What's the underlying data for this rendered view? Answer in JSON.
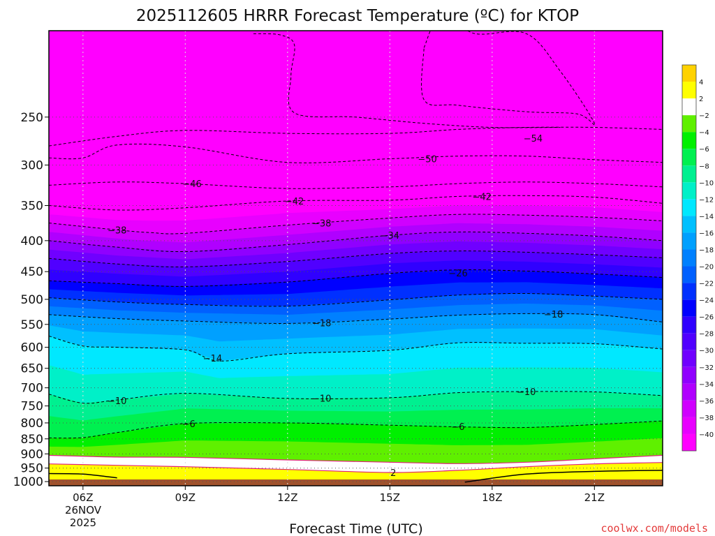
{
  "chart_data": {
    "type": "contour-filled time-height cross section",
    "title": "2025112605 HRRR Forecast Temperature (ºC) for KTOP",
    "xlabel": "Forecast Time (UTC)",
    "ylabel": "",
    "x_ticks": [
      "06Z",
      "09Z",
      "12Z",
      "15Z",
      "18Z",
      "21Z"
    ],
    "x_date_line1": "26NOV",
    "x_date_line2": "2025",
    "xlim_hours_utc": [
      5,
      23
    ],
    "ylim_hpa": [
      1016,
      180
    ],
    "y_scale": "log",
    "y_ticks": [
      250,
      300,
      350,
      400,
      450,
      500,
      550,
      600,
      650,
      700,
      750,
      800,
      850,
      900,
      950,
      1000
    ],
    "grid": true,
    "credit": "coolwx.com/models",
    "colorbar": {
      "placement": "right",
      "levels": [
        4,
        2,
        -2,
        -4,
        -6,
        -8,
        -10,
        -12,
        -14,
        -16,
        -18,
        -20,
        -22,
        -24,
        -26,
        -28,
        -30,
        -32,
        -34,
        -36,
        -38,
        -40
      ],
      "bands": [
        {
          "range": "> 4",
          "color": "#ffd200"
        },
        {
          "range": "2 to 4",
          "color": "#ffff00"
        },
        {
          "range": "-2 to 2",
          "color": "#ffffff"
        },
        {
          "range": "-4 to -2",
          "color": "#5ff000"
        },
        {
          "range": "-6 to -4",
          "color": "#00f000"
        },
        {
          "range": "-8 to -6",
          "color": "#00f050"
        },
        {
          "range": "-10 to -8",
          "color": "#00f090"
        },
        {
          "range": "-12 to -10",
          "color": "#00f0c8"
        },
        {
          "range": "-14 to -12",
          "color": "#00e8ff"
        },
        {
          "range": "-16 to -14",
          "color": "#00c0ff"
        },
        {
          "range": "-18 to -16",
          "color": "#00a0ff"
        },
        {
          "range": "-20 to -18",
          "color": "#0080ff"
        },
        {
          "range": "-22 to -20",
          "color": "#0060ff"
        },
        {
          "range": "-24 to -22",
          "color": "#0030ff"
        },
        {
          "range": "-26 to -24",
          "color": "#0000ff"
        },
        {
          "range": "-28 to -26",
          "color": "#3000ff"
        },
        {
          "range": "-30 to -28",
          "color": "#5000ff"
        },
        {
          "range": "-32 to -30",
          "color": "#7000ff"
        },
        {
          "range": "-34 to -32",
          "color": "#9000ff"
        },
        {
          "range": "-36 to -34",
          "color": "#b000ff"
        },
        {
          "range": "-38 to -36",
          "color": "#d000ff"
        },
        {
          "range": "-40 to -38",
          "color": "#e800ff"
        },
        {
          "range": "< -40",
          "color": "#ff00ff"
        }
      ]
    },
    "ground_color": "#a0522d",
    "freezing_line_color": "#e0207a",
    "contours": [
      {
        "value": -54,
        "label": "-54",
        "points": [
          [
            5,
            279
          ],
          [
            7,
            269
          ],
          [
            9,
            263
          ],
          [
            12,
            266
          ],
          [
            15,
            266
          ],
          [
            17,
            262
          ],
          [
            19,
            260
          ],
          [
            21,
            260
          ],
          [
            23,
            262
          ]
        ]
      },
      {
        "value": -50,
        "label": "-50",
        "points": [
          [
            5,
            292
          ],
          [
            6,
            292
          ],
          [
            7,
            278
          ],
          [
            9,
            280
          ],
          [
            12,
            297
          ],
          [
            15,
            293
          ],
          [
            17,
            290
          ],
          [
            19,
            290
          ],
          [
            21,
            294
          ],
          [
            23,
            297
          ]
        ]
      },
      {
        "value": -46,
        "label": "-46",
        "points": [
          [
            5,
            324
          ],
          [
            7,
            320
          ],
          [
            9,
            322
          ],
          [
            12,
            328
          ],
          [
            15,
            326
          ],
          [
            17,
            322
          ],
          [
            19,
            320
          ],
          [
            21,
            322
          ],
          [
            23,
            326
          ]
        ]
      },
      {
        "value": -42,
        "label": "-42",
        "points": [
          [
            5,
            350
          ],
          [
            7,
            356
          ],
          [
            9,
            353
          ],
          [
            12,
            344
          ],
          [
            15,
            343
          ],
          [
            17,
            338
          ],
          [
            19,
            337
          ],
          [
            21,
            339
          ],
          [
            23,
            347
          ]
        ]
      },
      {
        "value": -38,
        "label": "-38",
        "points": [
          [
            5,
            374
          ],
          [
            7,
            384
          ],
          [
            8,
            388
          ],
          [
            9,
            389
          ],
          [
            12,
            377
          ],
          [
            15,
            367
          ],
          [
            17,
            362
          ],
          [
            19,
            363
          ],
          [
            21,
            366
          ],
          [
            23,
            371
          ]
        ]
      },
      {
        "value": -34,
        "label": "-34",
        "points": [
          [
            5,
            400
          ],
          [
            7,
            410
          ],
          [
            9,
            417
          ],
          [
            12,
            406
          ],
          [
            15,
            392
          ],
          [
            17,
            387
          ],
          [
            19,
            389
          ],
          [
            21,
            393
          ],
          [
            23,
            400
          ]
        ]
      },
      {
        "value": -30,
        "label": "",
        "points": [
          [
            5,
            428
          ],
          [
            7,
            437
          ],
          [
            9,
            442
          ],
          [
            12,
            433
          ],
          [
            15,
            420
          ],
          [
            17,
            416
          ],
          [
            19,
            418
          ],
          [
            21,
            422
          ],
          [
            23,
            427
          ]
        ]
      },
      {
        "value": -26,
        "label": "-26",
        "points": [
          [
            5,
            466
          ],
          [
            7,
            471
          ],
          [
            9,
            476
          ],
          [
            12,
            468
          ],
          [
            15,
            453
          ],
          [
            17,
            447
          ],
          [
            19,
            449
          ],
          [
            21,
            454
          ],
          [
            23,
            460
          ]
        ]
      },
      {
        "value": -22,
        "label": "",
        "points": [
          [
            5,
            497
          ],
          [
            7,
            505
          ],
          [
            9,
            510
          ],
          [
            12,
            513
          ],
          [
            15,
            501
          ],
          [
            17,
            492
          ],
          [
            19,
            489
          ],
          [
            21,
            494
          ],
          [
            23,
            500
          ]
        ]
      },
      {
        "value": -18,
        "label": "-18",
        "points": [
          [
            5,
            530
          ],
          [
            7,
            538
          ],
          [
            9,
            543
          ],
          [
            12,
            548
          ],
          [
            15,
            539
          ],
          [
            17,
            531
          ],
          [
            19,
            528
          ],
          [
            21,
            530
          ],
          [
            23,
            545
          ]
        ]
      },
      {
        "value": -14,
        "label": "-14",
        "points": [
          [
            5,
            575
          ],
          [
            6,
            597
          ],
          [
            7,
            600
          ],
          [
            9,
            606
          ],
          [
            10,
            632
          ],
          [
            12,
            615
          ],
          [
            15,
            607
          ],
          [
            17,
            590
          ],
          [
            19,
            591
          ],
          [
            21,
            592
          ],
          [
            23,
            604
          ]
        ]
      },
      {
        "value": -10,
        "label": "-10",
        "points": [
          [
            5,
            717
          ],
          [
            6,
            742
          ],
          [
            7,
            733
          ],
          [
            9,
            715
          ],
          [
            12,
            729
          ],
          [
            15,
            727
          ],
          [
            17,
            713
          ],
          [
            19,
            710
          ],
          [
            21,
            711
          ],
          [
            23,
            721
          ]
        ]
      },
      {
        "value": -6,
        "label": "-6",
        "points": [
          [
            5,
            847
          ],
          [
            6,
            846
          ],
          [
            7,
            830
          ],
          [
            9,
            802
          ],
          [
            12,
            800
          ],
          [
            15,
            807
          ],
          [
            17,
            812
          ],
          [
            19,
            814
          ],
          [
            21,
            805
          ],
          [
            23,
            794
          ]
        ]
      },
      {
        "value": -2,
        "label": "",
        "points": [
          [
            5,
            905
          ],
          [
            7,
            911
          ],
          [
            9,
            912
          ],
          [
            12,
            921
          ],
          [
            15,
            929
          ],
          [
            17,
            934
          ],
          [
            19,
            929
          ],
          [
            21,
            917
          ],
          [
            23,
            905
          ]
        ]
      },
      {
        "value": 2,
        "label": "2",
        "points": [
          [
            5,
            935
          ],
          [
            7,
            940
          ],
          [
            9,
            945
          ],
          [
            12,
            955
          ],
          [
            15,
            966
          ],
          [
            17,
            958
          ],
          [
            19,
            945
          ],
          [
            21,
            935
          ],
          [
            23,
            930
          ]
        ]
      }
    ],
    "upper_closed_contour": {
      "value": -58,
      "label": "",
      "points": [
        [
          16.0,
          192
        ],
        [
          16.5,
          170
        ],
        [
          17.5,
          182
        ],
        [
          19,
          182
        ],
        [
          20.0,
          210
        ],
        [
          21.0,
          256
        ],
        [
          20.5,
          247
        ],
        [
          19.0,
          245
        ],
        [
          17.0,
          239
        ],
        [
          16.0,
          234
        ],
        [
          16.0,
          192
        ]
      ]
    },
    "top_left_contour": {
      "value": -58,
      "label": "",
      "points": [
        [
          11,
          182
        ],
        [
          11.8,
          183
        ],
        [
          12.2,
          190
        ],
        [
          12.1,
          214
        ],
        [
          12.2,
          246
        ],
        [
          14,
          250
        ],
        [
          16,
          256
        ],
        [
          18,
          260
        ],
        [
          20,
          260
        ]
      ]
    },
    "contour_label_positions": [
      {
        "label": "-54",
        "x": 19.2,
        "y": 271
      },
      {
        "label": "-50",
        "x": 16.1,
        "y": 293
      },
      {
        "label": "-46",
        "x": 9.2,
        "y": 322
      },
      {
        "label": "-42",
        "x": 12.2,
        "y": 344
      },
      {
        "label": "-42",
        "x": 17.7,
        "y": 338
      },
      {
        "label": "-38",
        "x": 7.0,
        "y": 384
      },
      {
        "label": "-38",
        "x": 13.0,
        "y": 374
      },
      {
        "label": "-34",
        "x": 15.0,
        "y": 392
      },
      {
        "label": "-26",
        "x": 17.0,
        "y": 452
      },
      {
        "label": "-18",
        "x": 13.0,
        "y": 547
      },
      {
        "label": "-18",
        "x": 19.8,
        "y": 529
      },
      {
        "label": "-14",
        "x": 9.8,
        "y": 625
      },
      {
        "label": "-10",
        "x": 7.0,
        "y": 735
      },
      {
        "label": "-10",
        "x": 13.0,
        "y": 728
      },
      {
        "label": "-10",
        "x": 19.0,
        "y": 710
      },
      {
        "label": "-6",
        "x": 9.1,
        "y": 802
      },
      {
        "label": "-6",
        "x": 17.0,
        "y": 811
      },
      {
        "label": "2",
        "x": 15.1,
        "y": 966
      }
    ]
  }
}
